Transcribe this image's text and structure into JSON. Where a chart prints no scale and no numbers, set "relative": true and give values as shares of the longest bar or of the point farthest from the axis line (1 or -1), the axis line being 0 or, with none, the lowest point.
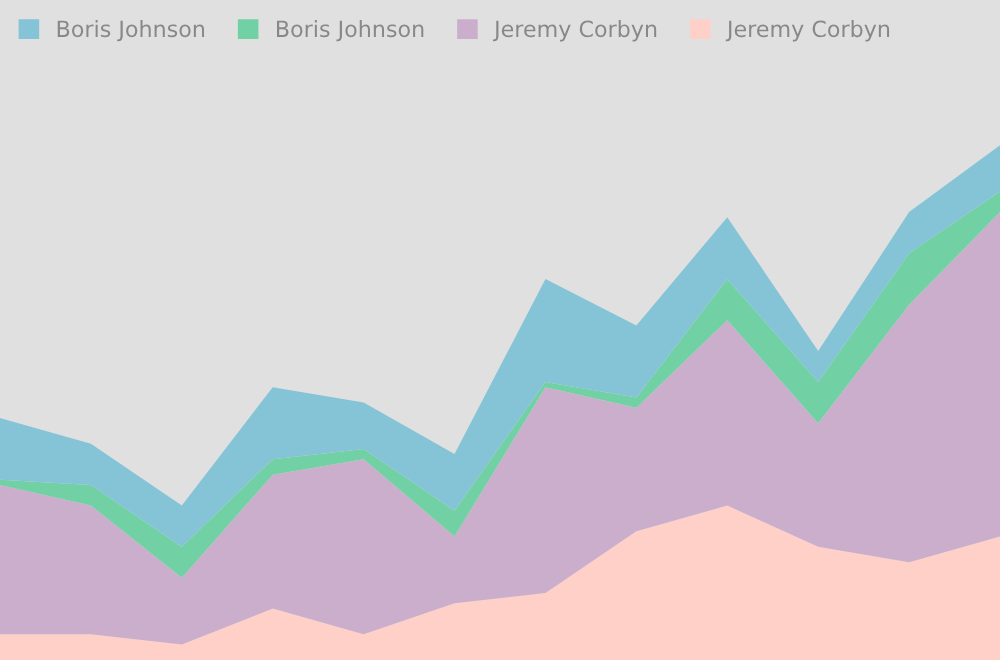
{
  "chart_data": {
    "type": "area",
    "stacked": true,
    "relative": true,
    "legend": "top left",
    "grid": false,
    "categories": [
      null,
      null,
      null,
      null,
      null,
      null,
      null,
      null,
      null,
      null,
      null,
      null
    ],
    "series": [
      {
        "name": "Jeremy Corbyn",
        "color": "#ffd0c8",
        "values": [
          0.05,
          0.05,
          0.03,
          0.1,
          0.05,
          0.11,
          0.13,
          0.25,
          0.3,
          0.22,
          0.19,
          0.24
        ]
      },
      {
        "name": "Jeremy Corbyn",
        "color": "#cbaecb",
        "values": [
          0.29,
          0.25,
          0.13,
          0.26,
          0.34,
          0.13,
          0.4,
          0.24,
          0.36,
          0.24,
          0.5,
          0.63
        ]
      },
      {
        "name": "Boris Johnson",
        "color": "#72d1a4",
        "values": [
          0.01,
          0.04,
          0.06,
          0.03,
          0.02,
          0.05,
          0.01,
          0.02,
          0.08,
          0.08,
          0.1,
          0.04
        ]
      },
      {
        "name": "Boris Johnson",
        "color": "#84c4d6",
        "values": [
          0.12,
          0.08,
          0.08,
          0.14,
          0.09,
          0.11,
          0.2,
          0.14,
          0.12,
          0.06,
          0.08,
          0.09
        ]
      }
    ]
  }
}
